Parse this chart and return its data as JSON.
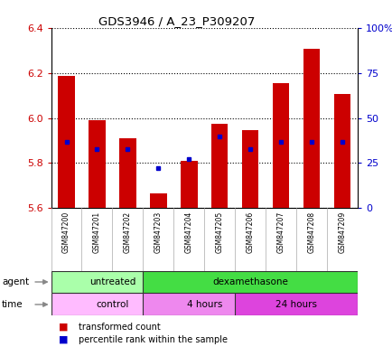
{
  "title": "GDS3946 / A_23_P309207",
  "samples": [
    "GSM847200",
    "GSM847201",
    "GSM847202",
    "GSM847203",
    "GSM847204",
    "GSM847205",
    "GSM847206",
    "GSM847207",
    "GSM847208",
    "GSM847209"
  ],
  "transformed_count": [
    6.185,
    5.99,
    5.91,
    5.665,
    5.81,
    5.975,
    5.945,
    6.155,
    6.305,
    6.105
  ],
  "percentile_rank": [
    37,
    33,
    33,
    22,
    27,
    40,
    33,
    37,
    37,
    37
  ],
  "ylim": [
    5.6,
    6.4
  ],
  "yticks": [
    5.6,
    5.8,
    6.0,
    6.2,
    6.4
  ],
  "right_yticks": [
    0,
    25,
    50,
    75,
    100
  ],
  "right_yticklabels": [
    "0",
    "25",
    "50",
    "75",
    "100%"
  ],
  "bar_color": "#cc0000",
  "dot_color": "#0000cc",
  "bar_width": 0.55,
  "agent_groups": [
    {
      "label": "untreated",
      "start": 0,
      "end": 3,
      "color": "#aaffaa"
    },
    {
      "label": "dexamethasone",
      "start": 3,
      "end": 9,
      "color": "#44dd44"
    }
  ],
  "time_groups": [
    {
      "label": "control",
      "start": 0,
      "end": 3,
      "color": "#ffbbff"
    },
    {
      "label": "4 hours",
      "start": 3,
      "end": 6,
      "color": "#ee88ee"
    },
    {
      "label": "24 hours",
      "start": 6,
      "end": 9,
      "color": "#dd44dd"
    }
  ],
  "sample_bg_color": "#cccccc",
  "legend_bar_color": "#cc0000",
  "legend_dot_color": "#0000cc",
  "background_color": "#ffffff",
  "plot_bg_color": "#ffffff",
  "grid_color": "#000000",
  "axis_label_color_left": "#cc0000",
  "axis_label_color_right": "#0000cc",
  "arrow_color": "#888888"
}
